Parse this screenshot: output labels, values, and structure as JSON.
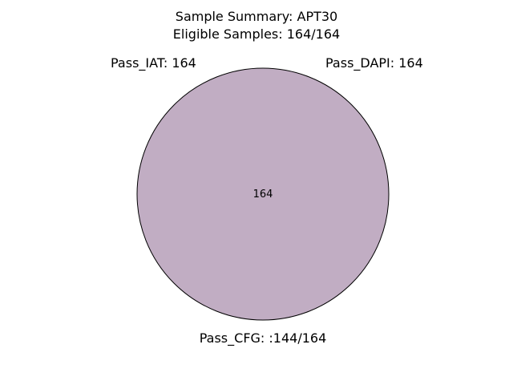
{
  "title_line1": "Sample Summary: APT30",
  "title_line2": "Eligible Samples: 164/164",
  "sets": {
    "iat": "Pass_IAT: 164",
    "dapi": "Pass_DAPI: 164",
    "cfg": "Pass_CFG: :144/164"
  },
  "region_value": "164",
  "colors": {
    "fill": "#c1adc3",
    "stroke": "#000000"
  }
}
